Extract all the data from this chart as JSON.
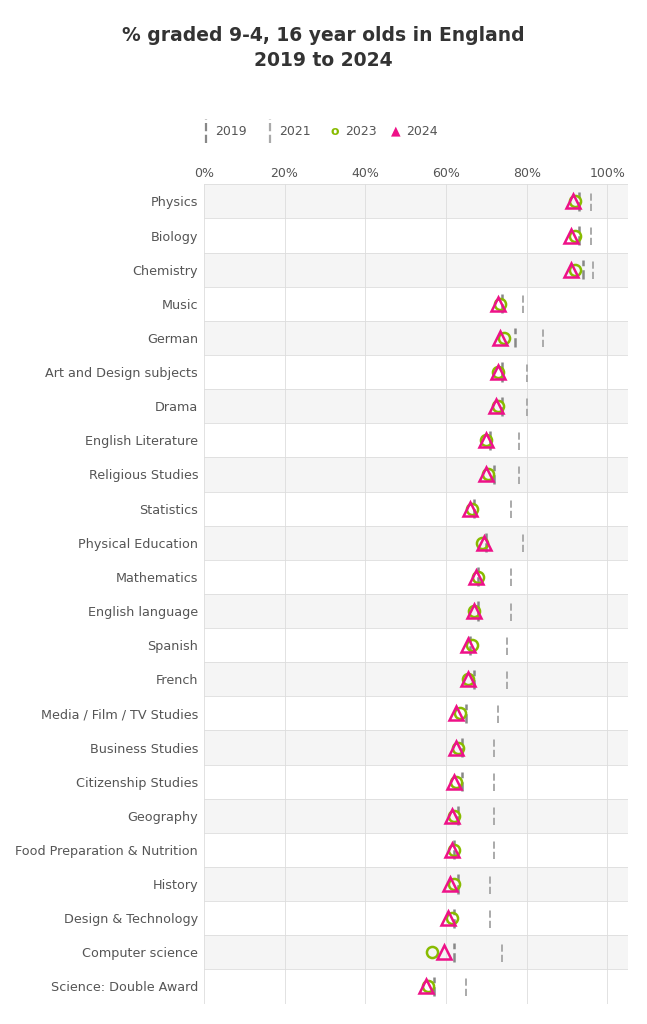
{
  "title": "% graded 9-4, 16 year olds in England\n2019 to 2024",
  "categories": [
    "Physics",
    "Biology",
    "Chemistry",
    "Music",
    "German",
    "Art and Design subjects",
    "Drama",
    "English Literature",
    "Religious Studies",
    "Statistics",
    "Physical Education",
    "Mathematics",
    "English language",
    "Spanish",
    "French",
    "Media / Film / TV Studies",
    "Business Studies",
    "Citizenship Studies",
    "Geography",
    "Food Preparation & Nutrition",
    "History",
    "Design & Technology",
    "Computer science",
    "Science: Double Award"
  ],
  "data_2019": [
    93.0,
    93.0,
    94.0,
    74.0,
    77.0,
    74.0,
    74.0,
    71.0,
    72.0,
    67.0,
    70.0,
    68.0,
    68.0,
    66.0,
    67.0,
    65.0,
    64.0,
    64.0,
    63.0,
    62.0,
    63.0,
    62.0,
    62.0,
    57.0
  ],
  "data_2021": [
    96.0,
    96.0,
    96.5,
    79.0,
    84.0,
    80.0,
    80.0,
    78.0,
    78.0,
    76.0,
    79.0,
    76.0,
    76.0,
    75.0,
    75.0,
    73.0,
    72.0,
    72.0,
    72.0,
    72.0,
    71.0,
    71.0,
    74.0,
    65.0
  ],
  "data_2023": [
    92.0,
    92.0,
    92.0,
    73.5,
    74.5,
    73.0,
    73.0,
    70.0,
    70.5,
    66.5,
    69.0,
    68.0,
    67.0,
    66.5,
    65.5,
    63.5,
    63.0,
    62.5,
    62.0,
    62.0,
    62.0,
    61.5,
    56.5,
    55.5
  ],
  "data_2024": [
    91.5,
    91.0,
    91.0,
    73.0,
    73.5,
    73.0,
    72.5,
    70.0,
    70.0,
    66.0,
    69.5,
    67.5,
    67.0,
    65.5,
    65.5,
    62.5,
    62.5,
    62.0,
    61.5,
    61.5,
    61.0,
    60.5,
    59.5,
    55.0
  ],
  "color_2019": "#888888",
  "color_2021": "#aaaaaa",
  "color_2023": "#88bb00",
  "color_2024": "#ee1188",
  "row_odd_color": "#f5f5f5",
  "row_even_color": "#ffffff",
  "separator_color": "#dddddd",
  "text_color": "#555555",
  "title_color": "#333333"
}
